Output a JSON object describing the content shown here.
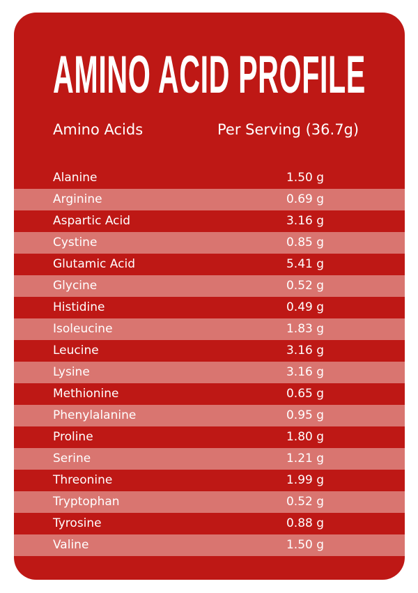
{
  "title": "AMINO ACID PROFILE",
  "headers": {
    "name": "Amino Acids",
    "value": "Per Serving (36.7g)"
  },
  "colors": {
    "card": "#BE1815",
    "alt_row": "#D97570",
    "text": "#FFFFFF"
  },
  "rows": [
    {
      "name": "Alanine",
      "value": "1.50 g"
    },
    {
      "name": "Arginine",
      "value": "0.69 g"
    },
    {
      "name": "Aspartic Acid",
      "value": "3.16 g"
    },
    {
      "name": "Cystine",
      "value": "0.85 g"
    },
    {
      "name": "Glutamic Acid",
      "value": "5.41 g"
    },
    {
      "name": "Glycine",
      "value": "0.52 g"
    },
    {
      "name": "Histidine",
      "value": "0.49 g"
    },
    {
      "name": "Isoleucine",
      "value": "1.83 g"
    },
    {
      "name": "Leucine",
      "value": "3.16 g"
    },
    {
      "name": "Lysine",
      "value": "3.16 g"
    },
    {
      "name": "Methionine",
      "value": "0.65 g"
    },
    {
      "name": "Phenylalanine",
      "value": "0.95 g"
    },
    {
      "name": "Proline",
      "value": "1.80 g"
    },
    {
      "name": "Serine",
      "value": "1.21 g"
    },
    {
      "name": "Threonine",
      "value": "1.99 g"
    },
    {
      "name": "Tryptophan",
      "value": "0.52 g"
    },
    {
      "name": "Tyrosine",
      "value": "0.88 g"
    },
    {
      "name": "Valine",
      "value": "1.50 g"
    }
  ]
}
